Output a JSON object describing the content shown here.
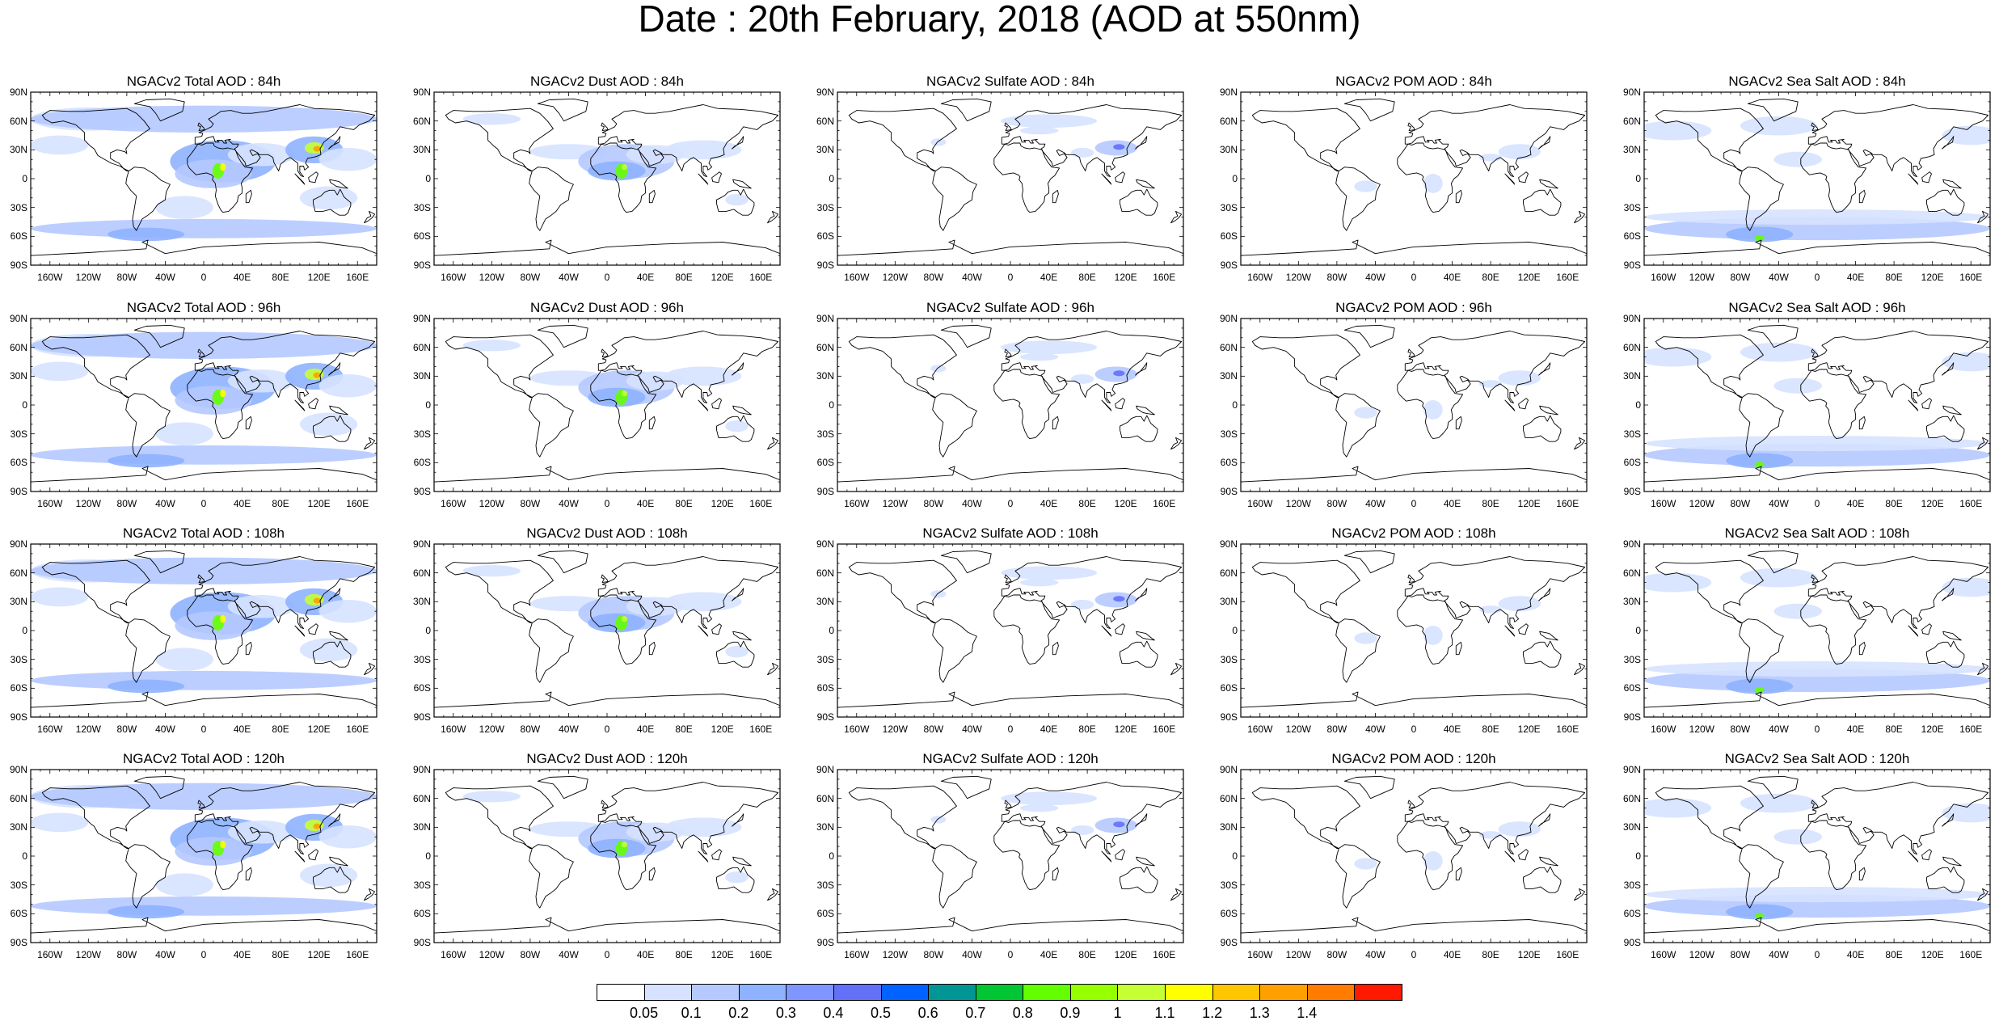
{
  "title": "Date : 20th February, 2018 (AOD at 550nm)",
  "lat_ticks": [
    "90N",
    "60N",
    "30N",
    "0",
    "30S",
    "60S",
    "90S"
  ],
  "lon_ticks": [
    "160W",
    "120W",
    "80W",
    "40W",
    "0",
    "40E",
    "80E",
    "120E",
    "160E"
  ],
  "lon_tick_values": [
    -160,
    -120,
    -80,
    -40,
    0,
    40,
    80,
    120,
    160
  ],
  "lat_tick_values": [
    90,
    60,
    30,
    0,
    -30,
    -60,
    -90
  ],
  "panels": [
    {
      "title": "NGACv2 Total AOD : 84h",
      "species": "total"
    },
    {
      "title": "NGACv2 Dust AOD : 84h",
      "species": "dust"
    },
    {
      "title": "NGACv2 Sulfate AOD : 84h",
      "species": "sulfate"
    },
    {
      "title": "NGACv2 POM AOD : 84h",
      "species": "pom"
    },
    {
      "title": "NGACv2 Sea Salt AOD : 84h",
      "species": "seasalt"
    },
    {
      "title": "NGACv2 Total AOD : 96h",
      "species": "total"
    },
    {
      "title": "NGACv2 Dust AOD : 96h",
      "species": "dust"
    },
    {
      "title": "NGACv2 Sulfate AOD : 96h",
      "species": "sulfate"
    },
    {
      "title": "NGACv2 POM AOD : 96h",
      "species": "pom"
    },
    {
      "title": "NGACv2 Sea Salt AOD : 96h",
      "species": "seasalt"
    },
    {
      "title": "NGACv2 Total AOD : 108h",
      "species": "total"
    },
    {
      "title": "NGACv2 Dust AOD : 108h",
      "species": "dust"
    },
    {
      "title": "NGACv2 Sulfate AOD : 108h",
      "species": "sulfate"
    },
    {
      "title": "NGACv2 POM AOD : 108h",
      "species": "pom"
    },
    {
      "title": "NGACv2 Sea Salt AOD : 108h",
      "species": "seasalt"
    },
    {
      "title": "NGACv2 Total AOD : 120h",
      "species": "total"
    },
    {
      "title": "NGACv2 Dust AOD : 120h",
      "species": "dust"
    },
    {
      "title": "NGACv2 Sulfate AOD : 120h",
      "species": "sulfate"
    },
    {
      "title": "NGACv2 POM AOD : 120h",
      "species": "pom"
    },
    {
      "title": "NGACv2 Sea Salt  AOD : 120h",
      "species": "seasalt"
    }
  ],
  "colorbar": {
    "labels": [
      "0.05",
      "0.1",
      "0.2",
      "0.3",
      "0.4",
      "0.5",
      "0.6",
      "0.7",
      "0.8",
      "0.9",
      "1",
      "1.1",
      "1.2",
      "1.3",
      "1.4"
    ],
    "colors": [
      "#ffffff",
      "#d6e2ff",
      "#b5c9ff",
      "#8eb2ff",
      "#7f96ff",
      "#6370f8",
      "#0063ff",
      "#009696",
      "#00c633",
      "#63ff00",
      "#96ff00",
      "#c6ff33",
      "#ffff00",
      "#ffc600",
      "#ffa000",
      "#ff7c00",
      "#ff1900"
    ]
  },
  "colors": {
    "ocean_bg": "#ffffff",
    "coast": "#000000"
  }
}
